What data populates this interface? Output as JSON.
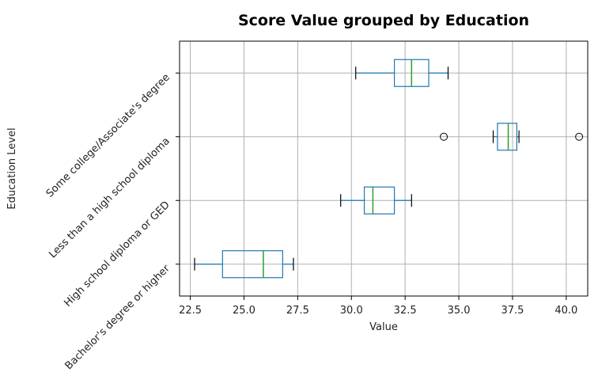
{
  "chart_data": {
    "type": "boxplot",
    "orientation": "horizontal",
    "title": "Score Value grouped by Education",
    "xlabel": "Value",
    "ylabel": "Education Level",
    "xlim": [
      22.0,
      41.0
    ],
    "x_ticks": [
      22.5,
      25.0,
      27.5,
      30.0,
      32.5,
      35.0,
      37.5,
      40.0
    ],
    "x_tick_labels": [
      "22.5",
      "25.0",
      "27.5",
      "30.0",
      "32.5",
      "35.0",
      "37.5",
      "40.0"
    ],
    "grid": true,
    "colors": {
      "box": "#1f77b4",
      "median": "#2ca02c",
      "whisker": "#1f77b4",
      "cap": "#000000",
      "grid": "#b0b0b0"
    },
    "categories": [
      "Bachelor's degree or higher",
      "High school diploma or GED",
      "Less than a high school diploma",
      "Some college/Associate's degree"
    ],
    "boxes": [
      {
        "category": "Bachelor's degree or higher",
        "whisker_low": 22.7,
        "q1": 24.0,
        "median": 25.9,
        "q3": 26.8,
        "whisker_high": 27.3,
        "outliers": []
      },
      {
        "category": "High school diploma or GED",
        "whisker_low": 29.5,
        "q1": 30.6,
        "median": 31.0,
        "q3": 32.0,
        "whisker_high": 32.8,
        "outliers": []
      },
      {
        "category": "Less than a high school diploma",
        "whisker_low": 36.6,
        "q1": 36.8,
        "median": 37.3,
        "q3": 37.7,
        "whisker_high": 37.8,
        "outliers": [
          34.3,
          40.6
        ]
      },
      {
        "category": "Some college/Associate's degree",
        "whisker_low": 30.2,
        "q1": 32.0,
        "median": 32.8,
        "q3": 33.6,
        "whisker_high": 34.5,
        "outliers": []
      }
    ]
  }
}
